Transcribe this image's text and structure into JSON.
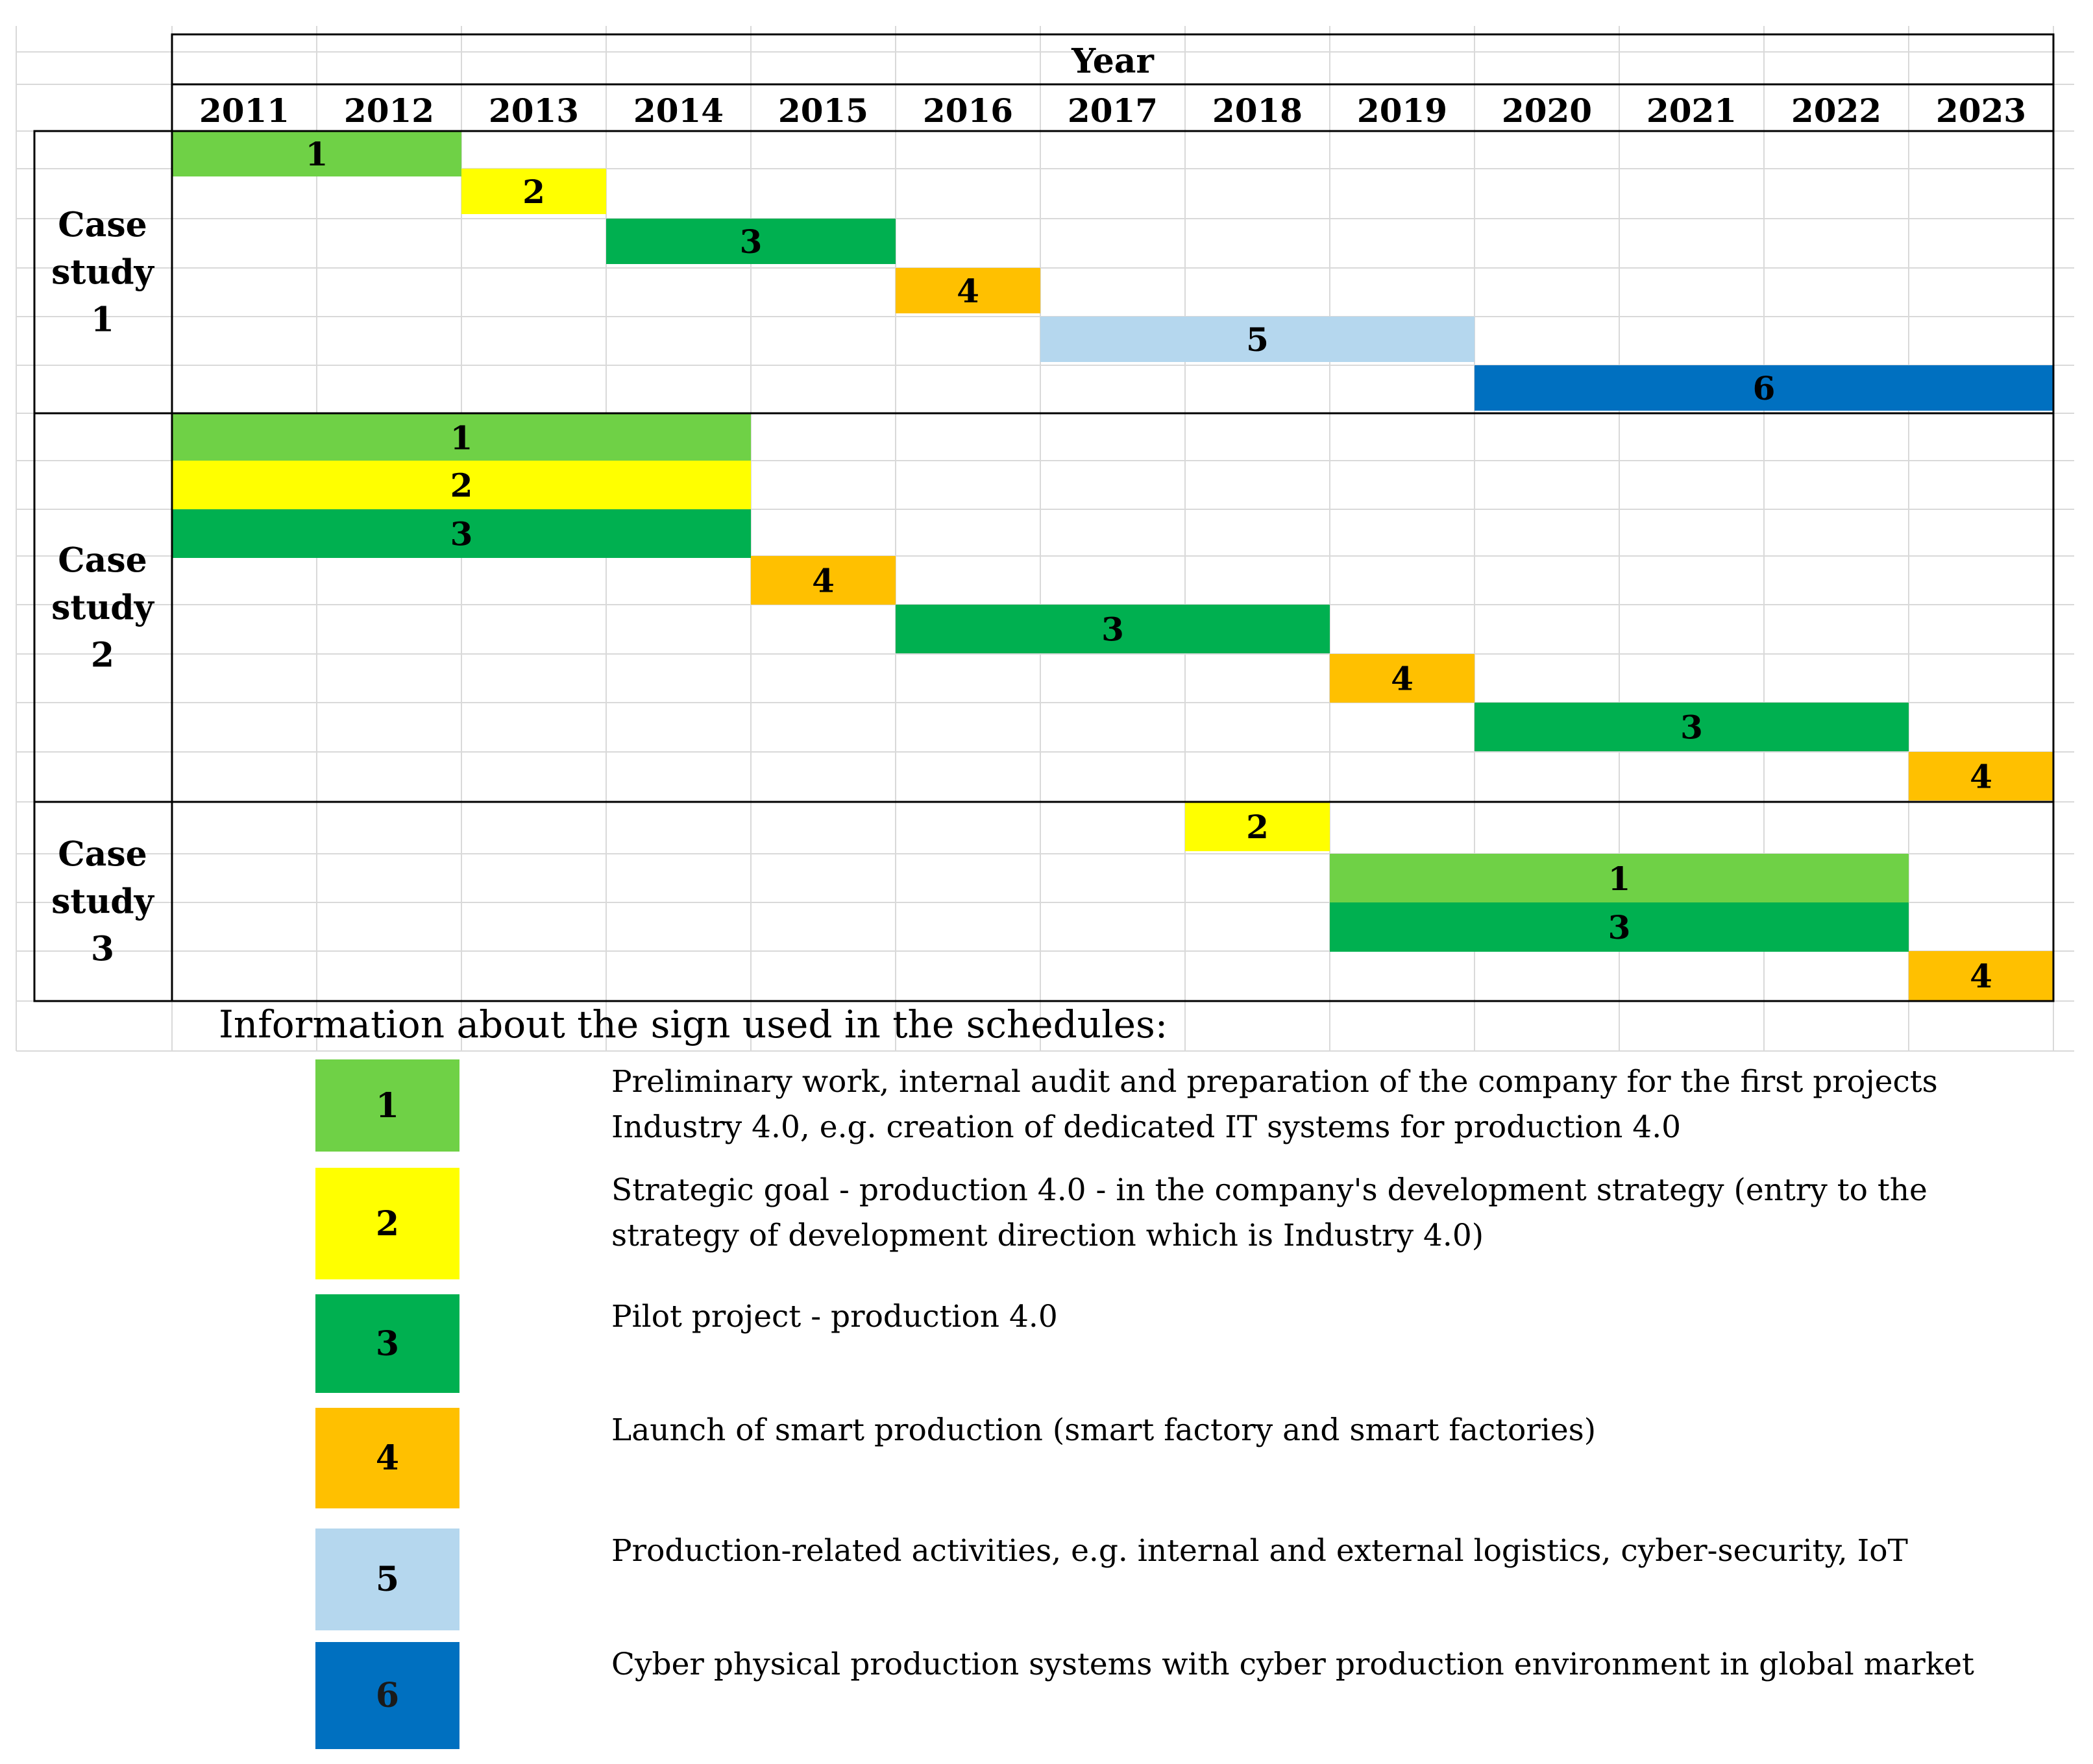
{
  "chart_data": {
    "type": "gantt",
    "header": "Year",
    "years": [
      "2011",
      "2012",
      "2013",
      "2014",
      "2015",
      "2016",
      "2017",
      "2018",
      "2019",
      "2020",
      "2021",
      "2022",
      "2023"
    ],
    "colors": {
      "1": "#6fd146",
      "2": "#ffff00",
      "3": "#00b050",
      "4": "#ffc000",
      "5": "#b5d7ee",
      "6": "#0070c0"
    },
    "case_studies": [
      {
        "label_lines": [
          "Case",
          "study",
          "1"
        ],
        "bars": [
          {
            "row": 0,
            "code": "1",
            "start": 2011,
            "end": 2012
          },
          {
            "row": 1,
            "code": "2",
            "start": 2013,
            "end": 2013
          },
          {
            "row": 2,
            "code": "3",
            "start": 2014,
            "end": 2015
          },
          {
            "row": 3,
            "code": "4",
            "start": 2016,
            "end": 2016
          },
          {
            "row": 4,
            "code": "5",
            "start": 2017,
            "end": 2019
          },
          {
            "row": 5,
            "code": "6",
            "start": 2020,
            "end": 2023
          }
        ]
      },
      {
        "label_lines": [
          "Case",
          "study",
          "2"
        ],
        "bars": [
          {
            "row": 0,
            "code": "1",
            "start": 2011,
            "end": 2014
          },
          {
            "row": 1,
            "code": "2",
            "start": 2011,
            "end": 2014
          },
          {
            "row": 2,
            "code": "3",
            "start": 2011,
            "end": 2014
          },
          {
            "row": 3,
            "code": "4",
            "start": 2015,
            "end": 2015
          },
          {
            "row": 4,
            "code": "3",
            "start": 2016,
            "end": 2018
          },
          {
            "row": 5,
            "code": "4",
            "start": 2019,
            "end": 2019
          },
          {
            "row": 6,
            "code": "3",
            "start": 2020,
            "end": 2022
          },
          {
            "row": 7,
            "code": "4",
            "start": 2023,
            "end": 2023
          }
        ]
      },
      {
        "label_lines": [
          "Case",
          "study",
          "3"
        ],
        "bars": [
          {
            "row": 0,
            "code": "2",
            "start": 2018,
            "end": 2018
          },
          {
            "row": 1,
            "code": "1",
            "start": 2019,
            "end": 2022
          },
          {
            "row": 2,
            "code": "3",
            "start": 2019,
            "end": 2022
          },
          {
            "row": 3,
            "code": "4",
            "start": 2023,
            "end": 2023
          }
        ]
      }
    ]
  },
  "legend": {
    "title": "Information about the sign used in the schedules:",
    "items": [
      {
        "code": "1",
        "lines": [
          "Preliminary work, internal audit and preparation of the company for the first projects",
          "Industry 4.0, e.g. creation of dedicated IT systems for production 4.0"
        ]
      },
      {
        "code": "2",
        "lines": [
          "Strategic goal - production 4.0 - in the company's development strategy (entry to the",
          "strategy of development direction which is Industry 4.0)"
        ]
      },
      {
        "code": "3",
        "lines": [
          "Pilot project - production 4.0"
        ]
      },
      {
        "code": "4",
        "lines": [
          "Launch of smart production (smart factory and smart factories)"
        ]
      },
      {
        "code": "5",
        "lines": [
          "Production-related activities, e.g. internal and external logistics, cyber-security, IoT"
        ]
      },
      {
        "code": "6",
        "lines": [
          "Cyber physical production systems with cyber production environment in global market"
        ]
      }
    ]
  }
}
